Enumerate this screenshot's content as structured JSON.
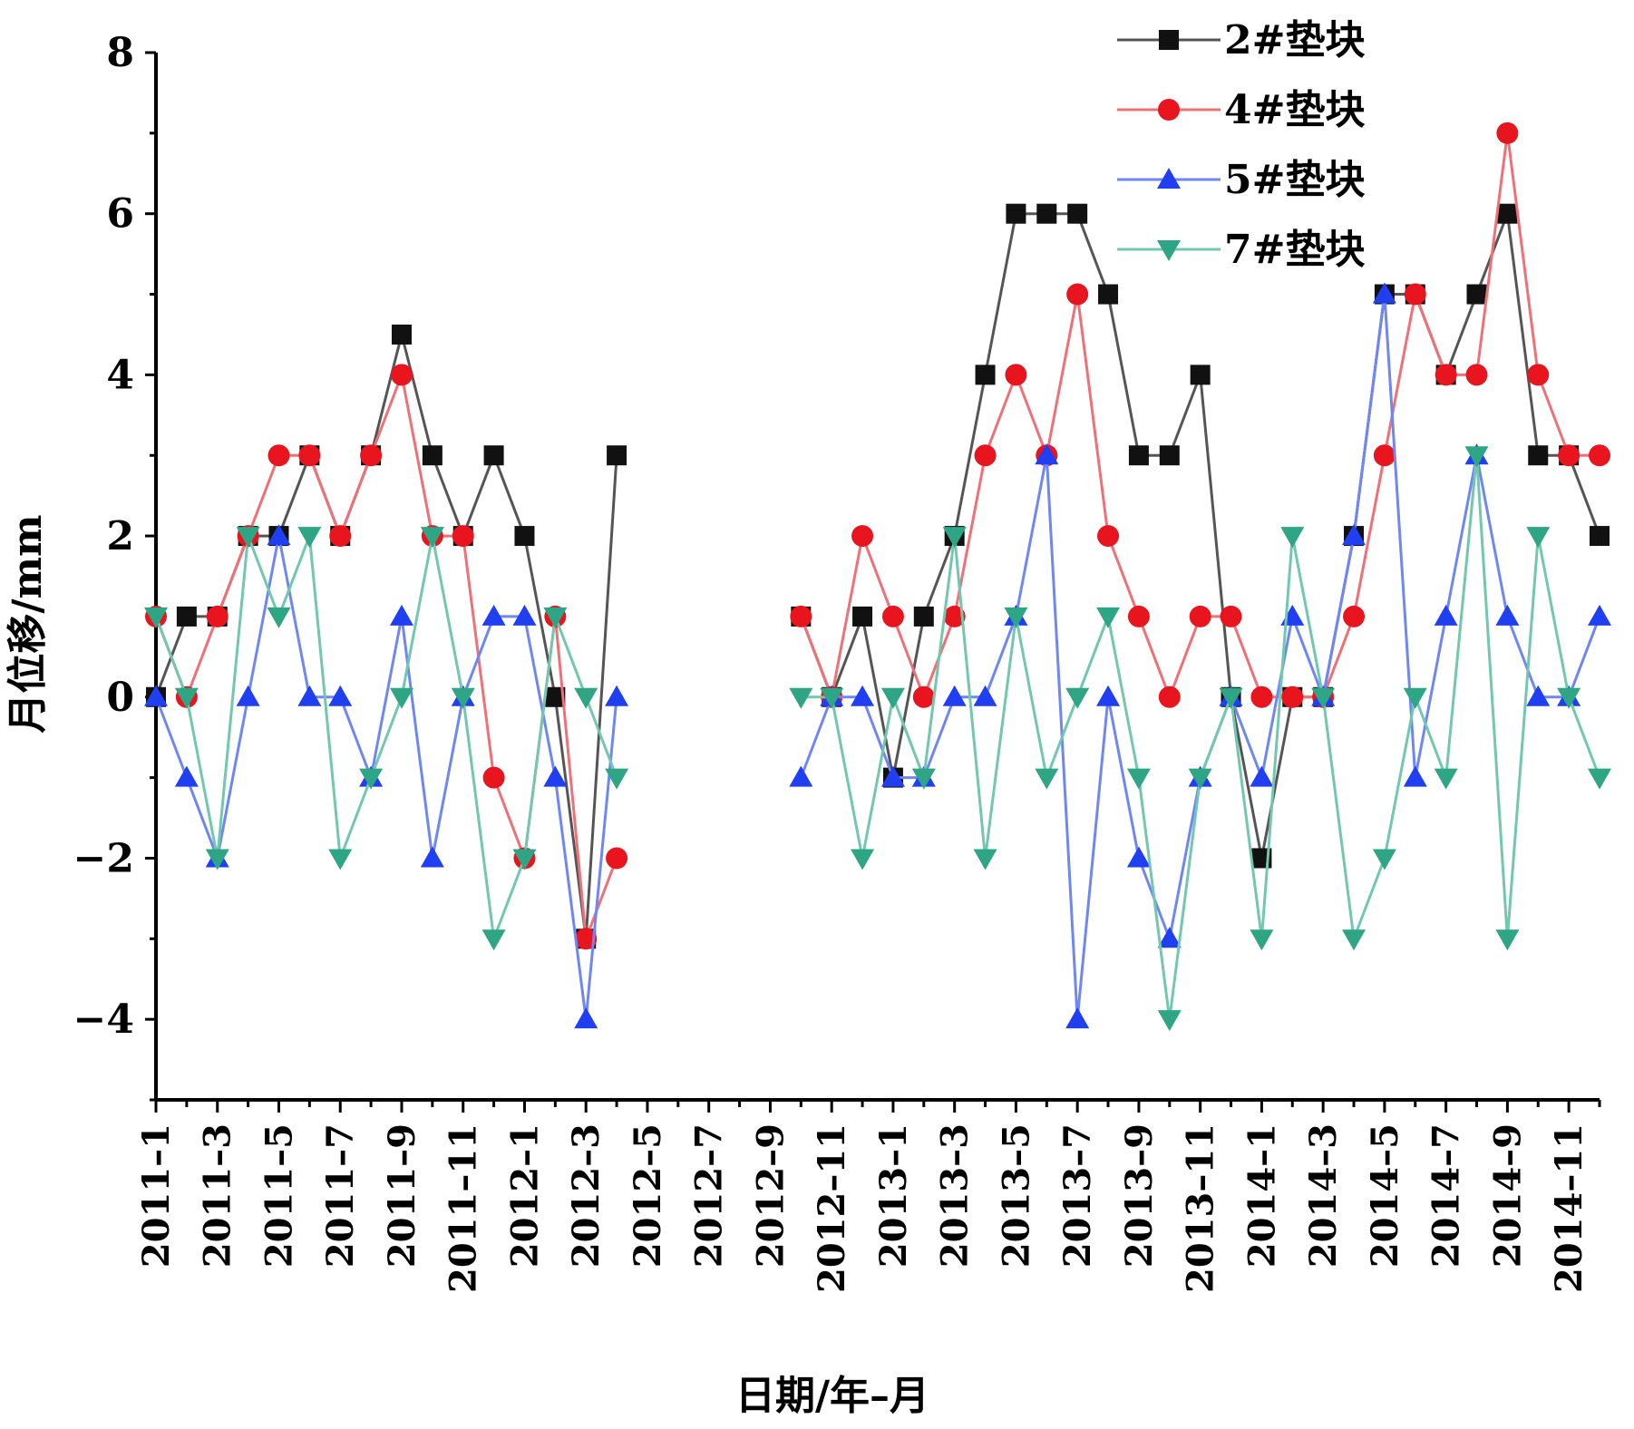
{
  "chart_data": {
    "type": "line",
    "title": "",
    "xlabel": "日期/年–月",
    "ylabel": "月位移/mm",
    "ylim": [
      -5,
      8
    ],
    "y_ticks": [
      -4,
      -2,
      0,
      2,
      4,
      6,
      8
    ],
    "y_tick_labels": [
      "−4",
      "−2",
      "0",
      "2",
      "4",
      "6",
      "8"
    ],
    "grid": false,
    "legend_position": "top-right",
    "x_tick_labels": [
      "2011–1",
      "2011–3",
      "2011–5",
      "2011–7",
      "2011–9",
      "2011–11",
      "2012–1",
      "2012–3",
      "2012–5",
      "2012–7",
      "2012–9",
      "2012–11",
      "2013–1",
      "2013–3",
      "2013–5",
      "2013–7",
      "2013–9",
      "2013–11",
      "2014–1",
      "2014–3",
      "2014–5",
      "2014–7",
      "2014–9",
      "2014–11"
    ],
    "months": [
      "2011-1",
      "2011-2",
      "2011-3",
      "2011-4",
      "2011-5",
      "2011-6",
      "2011-7",
      "2011-8",
      "2011-9",
      "2011-10",
      "2011-11",
      "2011-12",
      "2012-1",
      "2012-2",
      "2012-3",
      "2012-4",
      "2012-5",
      "2012-6",
      "2012-7",
      "2012-8",
      "2012-9",
      "2012-10",
      "2012-11",
      "2012-12",
      "2013-1",
      "2013-2",
      "2013-3",
      "2013-4",
      "2013-5",
      "2013-6",
      "2013-7",
      "2013-8",
      "2013-9",
      "2013-10",
      "2013-11",
      "2013-12",
      "2014-1",
      "2014-2",
      "2014-3",
      "2014-4",
      "2014-5",
      "2014-6",
      "2014-7",
      "2014-8",
      "2014-9",
      "2014-10",
      "2014-11",
      "2014-12"
    ],
    "series": [
      {
        "name": "2#垫块",
        "color": "#111111",
        "line_color": "#555555",
        "marker": "square",
        "values": [
          0,
          1,
          1,
          2,
          2,
          3,
          2,
          3,
          4.5,
          3,
          2,
          3,
          2,
          0,
          -3,
          3,
          null,
          null,
          null,
          null,
          null,
          1,
          0,
          1,
          -1,
          1,
          2,
          4,
          6,
          6,
          6,
          5,
          3,
          3,
          4,
          0,
          -2,
          0,
          0,
          2,
          5,
          5,
          4,
          5,
          6,
          3,
          3,
          2
        ]
      },
      {
        "name": "4#垫块",
        "color": "#e8141e",
        "line_color": "#f07078",
        "marker": "circle",
        "values": [
          1,
          0,
          1,
          2,
          3,
          3,
          2,
          3,
          4,
          2,
          2,
          -1,
          -2,
          1,
          -3,
          -2,
          null,
          null,
          null,
          null,
          null,
          1,
          0,
          2,
          1,
          0,
          1,
          3,
          4,
          3,
          5,
          2,
          1,
          0,
          1,
          1,
          0,
          0,
          0,
          1,
          3,
          5,
          4,
          4,
          7,
          4,
          3,
          3
        ]
      },
      {
        "name": "5#垫块",
        "color": "#1f3ff0",
        "line_color": "#6f86f5",
        "marker": "triangle-up",
        "values": [
          0,
          -1,
          -2,
          0,
          2,
          0,
          0,
          -1,
          1,
          -2,
          0,
          1,
          1,
          -1,
          -4,
          0,
          null,
          null,
          null,
          null,
          null,
          -1,
          0,
          0,
          -1,
          -1,
          0,
          0,
          1,
          3,
          -4,
          0,
          -2,
          -3,
          -1,
          0,
          -1,
          1,
          0,
          2,
          5,
          -1,
          1,
          3,
          1,
          0,
          0,
          1
        ]
      },
      {
        "name": "7#垫块",
        "color": "#2ea584",
        "line_color": "#72c8ae",
        "marker": "triangle-down",
        "values": [
          1,
          0,
          -2,
          2,
          1,
          2,
          -2,
          -1,
          0,
          2,
          0,
          -3,
          -2,
          1,
          0,
          -1,
          null,
          null,
          null,
          null,
          null,
          0,
          0,
          -2,
          0,
          -1,
          2,
          -2,
          1,
          -1,
          0,
          1,
          -1,
          -4,
          -1,
          0,
          -3,
          2,
          0,
          -3,
          -2,
          0,
          -1,
          3,
          -3,
          2,
          0,
          -1
        ]
      }
    ]
  }
}
